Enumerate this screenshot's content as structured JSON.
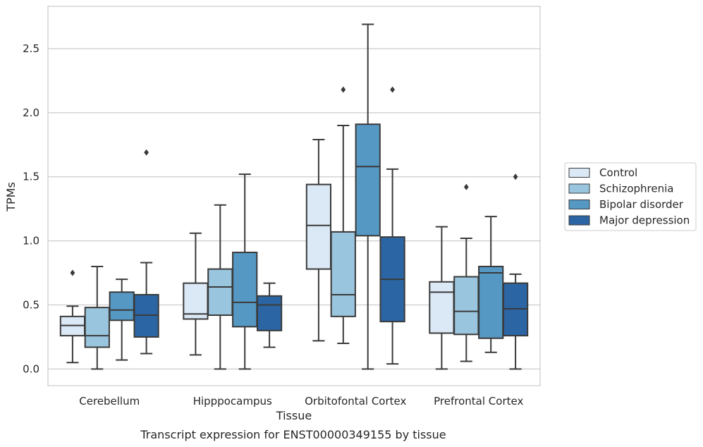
{
  "caption": "Transcript expression for ENST00000349155 by tissue",
  "chart_data": {
    "type": "box",
    "xlabel": "Tissue",
    "ylabel": "TPMs",
    "ylim": [
      -0.13,
      2.83
    ],
    "yticks": [
      0.0,
      0.5,
      1.0,
      1.5,
      2.0,
      2.5
    ],
    "ytick_labels": [
      "0.0",
      "0.5",
      "1.0",
      "1.5",
      "2.0",
      "2.5"
    ],
    "grid": "horizontal",
    "legend_position": "right",
    "categories": [
      "Cerebellum",
      "Hipppocampus",
      "Orbitofontal Cortex",
      "Prefrontal Cortex"
    ],
    "series": [
      {
        "name": "Control",
        "color": "#dbe8f5",
        "boxes": [
          {
            "whisker_low": 0.05,
            "q1": 0.26,
            "median": 0.34,
            "q3": 0.41,
            "whisker_high": 0.49,
            "outliers": [
              0.75
            ]
          },
          {
            "whisker_low": 0.11,
            "q1": 0.39,
            "median": 0.43,
            "q3": 0.67,
            "whisker_high": 1.06,
            "outliers": []
          },
          {
            "whisker_low": 0.22,
            "q1": 0.78,
            "median": 1.12,
            "q3": 1.44,
            "whisker_high": 1.79,
            "outliers": []
          },
          {
            "whisker_low": 0.0,
            "q1": 0.28,
            "median": 0.6,
            "q3": 0.68,
            "whisker_high": 1.11,
            "outliers": []
          }
        ]
      },
      {
        "name": "Schizophrenia",
        "color": "#9ac5de",
        "boxes": [
          {
            "whisker_low": 0.0,
            "q1": 0.17,
            "median": 0.26,
            "q3": 0.48,
            "whisker_high": 0.8,
            "outliers": []
          },
          {
            "whisker_low": 0.0,
            "q1": 0.42,
            "median": 0.64,
            "q3": 0.78,
            "whisker_high": 1.28,
            "outliers": []
          },
          {
            "whisker_low": 0.2,
            "q1": 0.41,
            "median": 0.58,
            "q3": 1.07,
            "whisker_high": 1.9,
            "outliers": [
              2.18
            ]
          },
          {
            "whisker_low": 0.06,
            "q1": 0.27,
            "median": 0.45,
            "q3": 0.72,
            "whisker_high": 1.02,
            "outliers": [
              1.42
            ]
          }
        ]
      },
      {
        "name": "Bipolar disorder",
        "color": "#5698c4",
        "boxes": [
          {
            "whisker_low": 0.07,
            "q1": 0.38,
            "median": 0.46,
            "q3": 0.6,
            "whisker_high": 0.7,
            "outliers": []
          },
          {
            "whisker_low": 0.0,
            "q1": 0.33,
            "median": 0.52,
            "q3": 0.91,
            "whisker_high": 1.52,
            "outliers": []
          },
          {
            "whisker_low": 0.0,
            "q1": 1.04,
            "median": 1.58,
            "q3": 1.91,
            "whisker_high": 2.69,
            "outliers": []
          },
          {
            "whisker_low": 0.13,
            "q1": 0.24,
            "median": 0.75,
            "q3": 0.8,
            "whisker_high": 1.19,
            "outliers": []
          }
        ]
      },
      {
        "name": "Major depression",
        "color": "#2c65a3",
        "boxes": [
          {
            "whisker_low": 0.12,
            "q1": 0.25,
            "median": 0.42,
            "q3": 0.58,
            "whisker_high": 0.83,
            "outliers": [
              1.69
            ]
          },
          {
            "whisker_low": 0.17,
            "q1": 0.3,
            "median": 0.5,
            "q3": 0.57,
            "whisker_high": 0.67,
            "outliers": []
          },
          {
            "whisker_low": 0.04,
            "q1": 0.37,
            "median": 0.7,
            "q3": 1.03,
            "whisker_high": 1.56,
            "outliers": [
              2.18
            ]
          },
          {
            "whisker_low": 0.0,
            "q1": 0.26,
            "median": 0.47,
            "q3": 0.67,
            "whisker_high": 0.74,
            "outliers": [
              1.5
            ]
          }
        ]
      }
    ]
  }
}
